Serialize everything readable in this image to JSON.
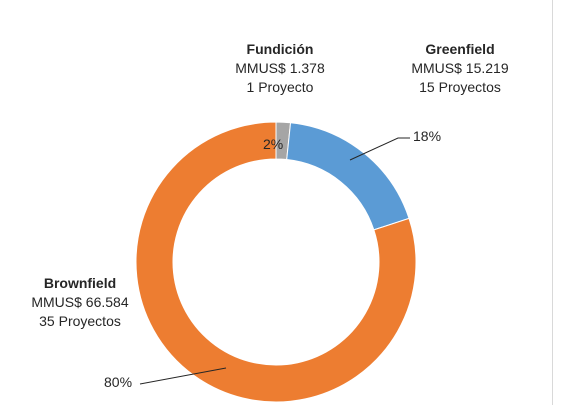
{
  "chart_data": {
    "type": "donut",
    "slices": [
      {
        "name": "Fundición",
        "amount": "MMUS$ 1.378",
        "projects": "1 Proyecto",
        "value": 1378,
        "percent_label": "2%",
        "color": "#a5a5a5"
      },
      {
        "name": "Greenfield",
        "amount": "MMUS$ 15.219",
        "projects": "15 Proyectos",
        "value": 15219,
        "percent_label": "18%",
        "color": "#5b9bd5"
      },
      {
        "name": "Brownfield",
        "amount": "MMUS$ 66.584",
        "projects": "35 Proyectos",
        "value": 66584,
        "percent_label": "80%",
        "color": "#ed7d31"
      }
    ],
    "start": "top",
    "direction": "clockwise"
  }
}
